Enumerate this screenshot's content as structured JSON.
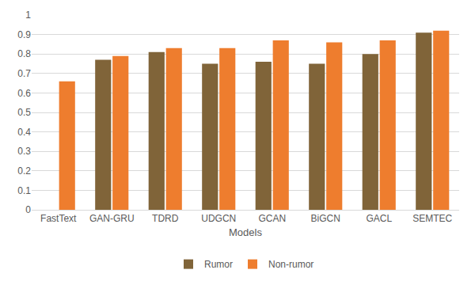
{
  "chart_data": {
    "type": "bar",
    "x_label": "Models",
    "categories": [
      "FastText",
      "GAN-GRU",
      "TDRD",
      "UDGCN",
      "GCAN",
      "BiGCN",
      "GACL",
      "SEMTEC"
    ],
    "series": [
      {
        "name": "Rumor",
        "color": "#806439",
        "values": [
          null,
          0.77,
          0.81,
          0.75,
          0.76,
          0.75,
          0.8,
          0.91
        ]
      },
      {
        "name": "Non-rumor",
        "color": "#ee7d2e",
        "values": [
          0.66,
          0.79,
          0.83,
          0.83,
          0.87,
          0.86,
          0.87,
          0.92
        ]
      }
    ],
    "ylim": [
      0,
      1
    ],
    "yticks": [
      0,
      0.1,
      0.2,
      0.3,
      0.4,
      0.5,
      0.6,
      0.7,
      0.8,
      0.9,
      1
    ],
    "grid": true,
    "legend": "bottom"
  }
}
